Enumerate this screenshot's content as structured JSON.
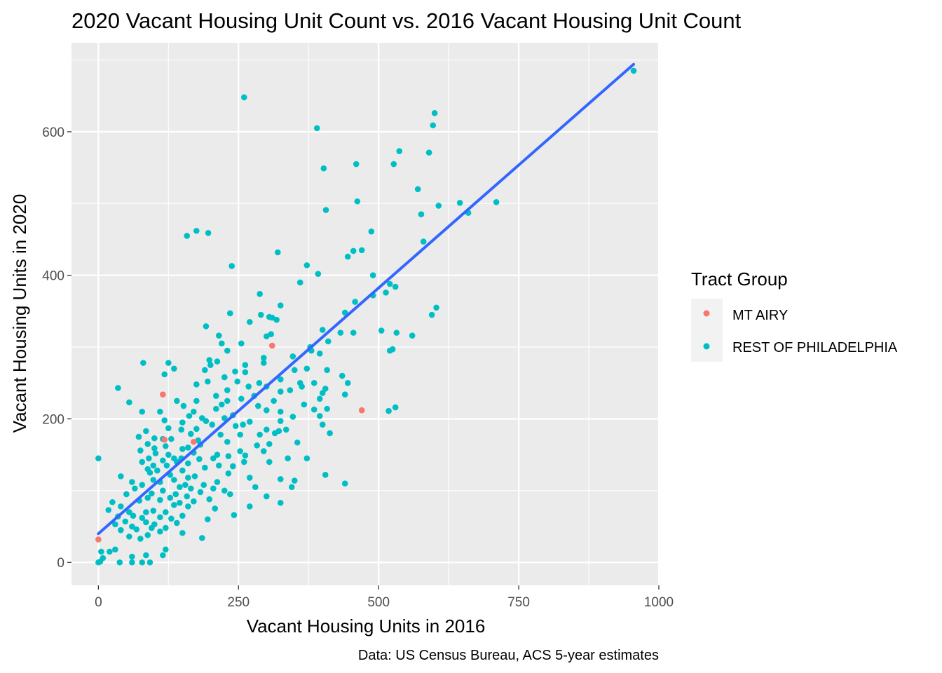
{
  "chart_data": {
    "type": "scatter",
    "title": "2020 Vacant Housing Unit Count vs. 2016 Vacant Housing Unit Count",
    "xlabel": "Vacant Housing Units in 2016",
    "ylabel": "Vacant Housing Units in 2020",
    "caption": "Data: US Census Bureau, ACS 5-year estimates",
    "xlim": [
      -48,
      1000
    ],
    "ylim": [
      -32,
      724
    ],
    "x_ticks": [
      0,
      250,
      500,
      750,
      1000
    ],
    "x_tick_labels": [
      "0",
      "250",
      "500",
      "750",
      "1000"
    ],
    "y_ticks": [
      0,
      200,
      400,
      600
    ],
    "y_tick_labels": [
      "0",
      "200",
      "400",
      "600"
    ],
    "grid": true,
    "panel_background": "#ebebeb",
    "legend": {
      "title": "Tract Group",
      "position": "right",
      "entries": [
        {
          "label": "MT AIRY",
          "color": "#f8766d"
        },
        {
          "label": "REST OF PHILADELPHIA",
          "color": "#00bfc4"
        }
      ]
    },
    "fit_line": {
      "color": "#3366ff",
      "x": [
        0,
        955
      ],
      "y": [
        40,
        694
      ]
    },
    "series": [
      {
        "name": "MT AIRY",
        "color": "#f8766d",
        "points": [
          [
            0,
            32
          ],
          [
            115,
            234
          ],
          [
            118,
            171
          ],
          [
            170,
            168
          ],
          [
            310,
            302
          ],
          [
            470,
            212
          ]
        ]
      },
      {
        "name": "REST OF PHILADELPHIA",
        "color": "#00bfc4",
        "points": [
          [
            955,
            685
          ],
          [
            260,
            648
          ],
          [
            600,
            626
          ],
          [
            597,
            609
          ],
          [
            390,
            605
          ],
          [
            537,
            573
          ],
          [
            590,
            571
          ],
          [
            402,
            549
          ],
          [
            460,
            555
          ],
          [
            527,
            555
          ],
          [
            570,
            520
          ],
          [
            462,
            503
          ],
          [
            607,
            497
          ],
          [
            645,
            501
          ],
          [
            660,
            487
          ],
          [
            710,
            502
          ],
          [
            406,
            491
          ],
          [
            576,
            485
          ],
          [
            175,
            462
          ],
          [
            196,
            459
          ],
          [
            158,
            455
          ],
          [
            487,
            461
          ],
          [
            580,
            447
          ],
          [
            455,
            434
          ],
          [
            470,
            435
          ],
          [
            320,
            432
          ],
          [
            445,
            426
          ],
          [
            238,
            413
          ],
          [
            372,
            414
          ],
          [
            392,
            402
          ],
          [
            490,
            400
          ],
          [
            360,
            390
          ],
          [
            520,
            388
          ],
          [
            530,
            384
          ],
          [
            513,
            376
          ],
          [
            288,
            374
          ],
          [
            490,
            372
          ],
          [
            458,
            363
          ],
          [
            325,
            358
          ],
          [
            603,
            355
          ],
          [
            595,
            345
          ],
          [
            440,
            348
          ],
          [
            305,
            342
          ],
          [
            290,
            345
          ],
          [
            235,
            347
          ],
          [
            310,
            341
          ],
          [
            318,
            338
          ],
          [
            270,
            335
          ],
          [
            192,
            329
          ],
          [
            505,
            323
          ],
          [
            532,
            320
          ],
          [
            400,
            324
          ],
          [
            215,
            316
          ],
          [
            432,
            320
          ],
          [
            455,
            320
          ],
          [
            410,
            308
          ],
          [
            560,
            316
          ],
          [
            308,
            318
          ],
          [
            300,
            315
          ],
          [
            220,
            305
          ],
          [
            255,
            305
          ],
          [
            378,
            300
          ],
          [
            380,
            295
          ],
          [
            525,
            297
          ],
          [
            520,
            295
          ],
          [
            395,
            291
          ],
          [
            230,
            295
          ],
          [
            295,
            285
          ],
          [
            347,
            287
          ],
          [
            80,
            278
          ],
          [
            125,
            278
          ],
          [
            198,
            282
          ],
          [
            212,
            280
          ],
          [
            295,
            278
          ],
          [
            262,
            275
          ],
          [
            350,
            268
          ],
          [
            372,
            270
          ],
          [
            408,
            268
          ],
          [
            200,
            275
          ],
          [
            135,
            270
          ],
          [
            118,
            262
          ],
          [
            190,
            268
          ],
          [
            244,
            266
          ],
          [
            262,
            265
          ],
          [
            435,
            260
          ],
          [
            445,
            250
          ],
          [
            325,
            255
          ],
          [
            287,
            250
          ],
          [
            300,
            245
          ],
          [
            385,
            250
          ],
          [
            360,
            250
          ],
          [
            225,
            258
          ],
          [
            35,
            243
          ],
          [
            175,
            248
          ],
          [
            195,
            252
          ],
          [
            248,
            252
          ],
          [
            268,
            245
          ],
          [
            363,
            245
          ],
          [
            342,
            240
          ],
          [
            405,
            242
          ],
          [
            230,
            240
          ],
          [
            325,
            238
          ],
          [
            400,
            236
          ],
          [
            210,
            232
          ],
          [
            440,
            234
          ],
          [
            278,
            232
          ],
          [
            255,
            228
          ],
          [
            230,
            225
          ],
          [
            175,
            225
          ],
          [
            55,
            223
          ],
          [
            313,
            225
          ],
          [
            395,
            228
          ],
          [
            140,
            225
          ],
          [
            152,
            218
          ],
          [
            220,
            220
          ],
          [
            285,
            218
          ],
          [
            367,
            220
          ],
          [
            210,
            214
          ],
          [
            530,
            216
          ],
          [
            300,
            212
          ],
          [
            385,
            213
          ],
          [
            408,
            214
          ],
          [
            518,
            211
          ],
          [
            78,
            210
          ],
          [
            110,
            210
          ],
          [
            170,
            210
          ],
          [
            240,
            205
          ],
          [
            325,
            210
          ],
          [
            347,
            203
          ],
          [
            395,
            204
          ],
          [
            162,
            204
          ],
          [
            185,
            201
          ],
          [
            225,
            201
          ],
          [
            118,
            198
          ],
          [
            150,
            195
          ],
          [
            192,
            197
          ],
          [
            270,
            196
          ],
          [
            325,
            197
          ],
          [
            203,
            192
          ],
          [
            258,
            192
          ],
          [
            400,
            192
          ],
          [
            245,
            190
          ],
          [
            125,
            187
          ],
          [
            175,
            186
          ],
          [
            148,
            185
          ],
          [
            335,
            185
          ],
          [
            300,
            185
          ],
          [
            322,
            183
          ],
          [
            413,
            180
          ],
          [
            85,
            183
          ],
          [
            165,
            179
          ],
          [
            218,
            178
          ],
          [
            253,
            178
          ],
          [
            72,
            175
          ],
          [
            100,
            173
          ],
          [
            130,
            172
          ],
          [
            178,
            170
          ],
          [
            288,
            178
          ],
          [
            315,
            180
          ],
          [
            115,
            172
          ],
          [
            355,
            167
          ],
          [
            230,
            168
          ],
          [
            283,
            163
          ],
          [
            305,
            165
          ],
          [
            88,
            165
          ],
          [
            120,
            162
          ],
          [
            160,
            160
          ],
          [
            150,
            158
          ],
          [
            182,
            164
          ],
          [
            75,
            156
          ],
          [
            100,
            159
          ],
          [
            170,
            153
          ],
          [
            253,
            155
          ],
          [
            295,
            155
          ],
          [
            0,
            145
          ],
          [
            102,
            152
          ],
          [
            125,
            150
          ],
          [
            212,
            150
          ],
          [
            232,
            148
          ],
          [
            262,
            149
          ],
          [
            90,
            145
          ],
          [
            135,
            145
          ],
          [
            148,
            145
          ],
          [
            205,
            145
          ],
          [
            180,
            144
          ],
          [
            338,
            145
          ],
          [
            372,
            145
          ],
          [
            78,
            140
          ],
          [
            115,
            142
          ],
          [
            140,
            140
          ],
          [
            160,
            138
          ],
          [
            260,
            140
          ],
          [
            305,
            140
          ],
          [
            98,
            135
          ],
          [
            122,
            135
          ],
          [
            215,
            135
          ],
          [
            190,
            132
          ],
          [
            240,
            134
          ],
          [
            88,
            130
          ],
          [
            105,
            128
          ],
          [
            150,
            128
          ],
          [
            92,
            125
          ],
          [
            232,
            124
          ],
          [
            128,
            122
          ],
          [
            172,
            120
          ],
          [
            40,
            120
          ],
          [
            160,
            118
          ],
          [
            270,
            118
          ],
          [
            325,
            116
          ],
          [
            350,
            114
          ],
          [
            405,
            122
          ],
          [
            98,
            115
          ],
          [
            135,
            115
          ],
          [
            60,
            112
          ],
          [
            110,
            112
          ],
          [
            212,
            112
          ],
          [
            78,
            108
          ],
          [
            155,
            108
          ],
          [
            188,
            108
          ],
          [
            280,
            105
          ],
          [
            345,
            105
          ],
          [
            440,
            110
          ],
          [
            65,
            103
          ],
          [
            145,
            105
          ],
          [
            165,
            103
          ],
          [
            205,
            103
          ],
          [
            115,
            100
          ],
          [
            225,
            100
          ],
          [
            182,
            98
          ],
          [
            95,
            96
          ],
          [
            50,
            95
          ],
          [
            138,
            95
          ],
          [
            158,
            92
          ],
          [
            235,
            95
          ],
          [
            300,
            92
          ],
          [
            88,
            90
          ],
          [
            128,
            90
          ],
          [
            198,
            88
          ],
          [
            110,
            87
          ],
          [
            73,
            86
          ],
          [
            170,
            85
          ],
          [
            145,
            83
          ],
          [
            325,
            83
          ],
          [
            25,
            84
          ],
          [
            40,
            78
          ],
          [
            135,
            80
          ],
          [
            160,
            78
          ],
          [
            270,
            78
          ],
          [
            208,
            75
          ],
          [
            18,
            73
          ],
          [
            98,
            72
          ],
          [
            55,
            70
          ],
          [
            85,
            70
          ],
          [
            120,
            70
          ],
          [
            242,
            66
          ],
          [
            62,
            65
          ],
          [
            150,
            65
          ],
          [
            35,
            64
          ],
          [
            110,
            63
          ],
          [
            78,
            62
          ],
          [
            130,
            61
          ],
          [
            195,
            60
          ],
          [
            48,
            57
          ],
          [
            85,
            56
          ],
          [
            140,
            55
          ],
          [
            100,
            53
          ],
          [
            30,
            53
          ],
          [
            60,
            50
          ],
          [
            120,
            48
          ],
          [
            95,
            48
          ],
          [
            68,
            46
          ],
          [
            40,
            45
          ],
          [
            110,
            43
          ],
          [
            150,
            41
          ],
          [
            88,
            38
          ],
          [
            55,
            36
          ],
          [
            75,
            33
          ],
          [
            185,
            34
          ],
          [
            30,
            18
          ],
          [
            120,
            18
          ],
          [
            20,
            15
          ],
          [
            5,
            15
          ],
          [
            85,
            10
          ],
          [
            115,
            10
          ],
          [
            60,
            8
          ],
          [
            8,
            6
          ],
          [
            3,
            1
          ],
          [
            0,
            0
          ],
          [
            38,
            0
          ],
          [
            60,
            0
          ],
          [
            78,
            0
          ],
          [
            92,
            0
          ]
        ]
      }
    ]
  }
}
